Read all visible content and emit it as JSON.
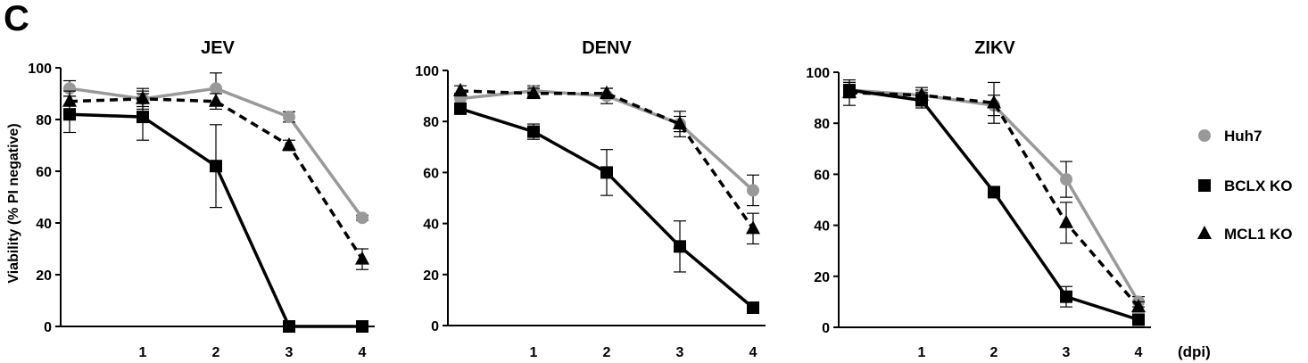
{
  "panel_label": "C",
  "y_axis_label": "Viability (% PI negative)",
  "x_unit_label": "(dpi)",
  "legend": [
    {
      "name": "Huh7",
      "marker": "circle",
      "color": "#999999",
      "dash": false
    },
    {
      "name": "BCLX KO",
      "marker": "square",
      "color": "#000000",
      "dash": false
    },
    {
      "name": "MCL1 KO",
      "marker": "triangle",
      "color": "#000000",
      "dash": true
    }
  ],
  "chart_data": [
    {
      "type": "line",
      "title": "JEV",
      "x": [
        0,
        1,
        2,
        3,
        4
      ],
      "xticks": [
        "1",
        "2",
        "3",
        "4"
      ],
      "ylim": [
        0,
        100
      ],
      "yticks": [
        0,
        20,
        40,
        60,
        80,
        100
      ],
      "xlabel": "(dpi)",
      "ylabel": "Viability (% PI negative)",
      "series": [
        {
          "name": "Huh7",
          "values": [
            92,
            88,
            92,
            81,
            42
          ],
          "errors": [
            3,
            3,
            6,
            2,
            1
          ]
        },
        {
          "name": "BCLX KO",
          "values": [
            82,
            81,
            62,
            0,
            0
          ],
          "errors": [
            7,
            9,
            16,
            0,
            0
          ]
        },
        {
          "name": "MCL1 KO",
          "values": [
            87,
            88,
            87,
            70,
            26
          ],
          "errors": [
            4,
            4,
            3,
            2,
            4
          ]
        }
      ]
    },
    {
      "type": "line",
      "title": "DENV",
      "x": [
        0,
        1,
        2,
        3,
        4
      ],
      "xticks": [
        "1",
        "2",
        "3",
        "4"
      ],
      "ylim": [
        0,
        100
      ],
      "yticks": [
        0,
        20,
        40,
        60,
        80,
        100
      ],
      "xlabel": "(dpi)",
      "ylabel": "",
      "series": [
        {
          "name": "Huh7",
          "values": [
            89,
            92,
            90,
            79,
            53
          ],
          "errors": [
            2,
            2,
            3,
            3,
            6
          ]
        },
        {
          "name": "BCLX KO",
          "values": [
            85,
            76,
            60,
            31,
            7
          ],
          "errors": [
            2,
            3,
            9,
            10,
            1
          ]
        },
        {
          "name": "MCL1 KO",
          "values": [
            92,
            91,
            91,
            79,
            38
          ],
          "errors": [
            2,
            2,
            2,
            5,
            6
          ]
        }
      ]
    },
    {
      "type": "line",
      "title": "ZIKV",
      "x": [
        0,
        1,
        2,
        3,
        4
      ],
      "xticks": [
        "1",
        "2",
        "3",
        "4"
      ],
      "ylim": [
        0,
        100
      ],
      "yticks": [
        0,
        20,
        40,
        60,
        80,
        100
      ],
      "xlabel": "(dpi)",
      "ylabel": "",
      "series": [
        {
          "name": "Huh7",
          "values": [
            93,
            91,
            87,
            58,
            10
          ],
          "errors": [
            3,
            2,
            4,
            7,
            2
          ]
        },
        {
          "name": "BCLX KO",
          "values": [
            93,
            89,
            53,
            12,
            3
          ],
          "errors": [
            3,
            3,
            2,
            4,
            1
          ]
        },
        {
          "name": "MCL1 KO",
          "values": [
            92,
            91,
            88,
            41,
            8
          ],
          "errors": [
            5,
            3,
            8,
            8,
            2
          ]
        }
      ]
    }
  ]
}
